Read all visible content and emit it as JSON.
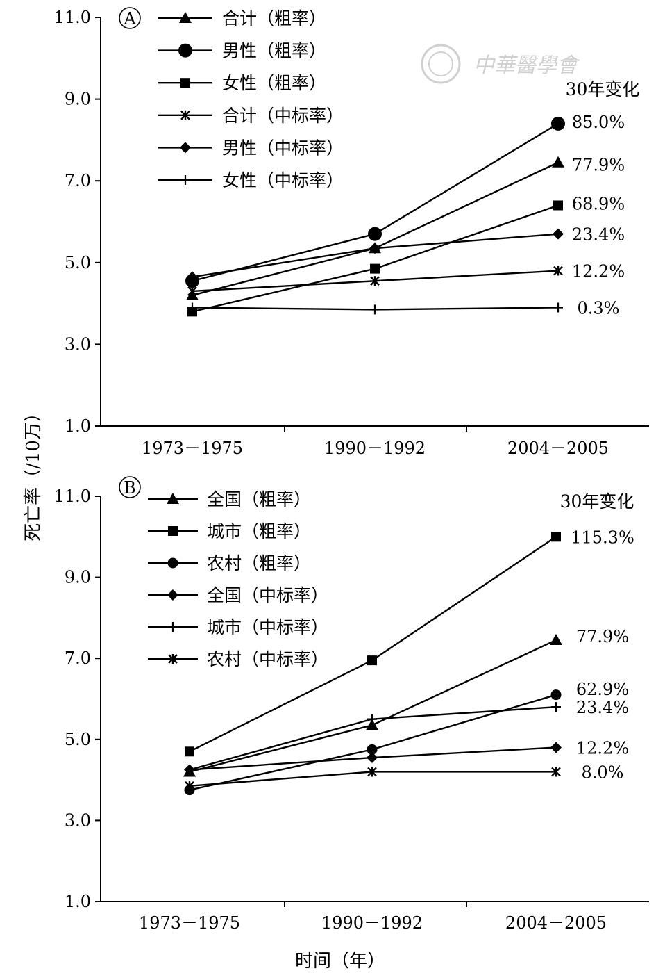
{
  "watermark": "中華醫學會",
  "y_axis_label": "死亡率（/10万）",
  "x_axis_label": "时间（年）",
  "chart_data": [
    {
      "panel": "A",
      "type": "line",
      "categories": [
        "1973－1975",
        "1990－1992",
        "2004－2005"
      ],
      "ylim": [
        1.0,
        11.0
      ],
      "yticks": [
        "1.0",
        "3.0",
        "5.0",
        "7.0",
        "9.0",
        "11.0"
      ],
      "change_title": "30年变化",
      "legend_position": "top-left",
      "series": [
        {
          "name": "合计（粗率）",
          "marker": "triangle",
          "values": [
            4.2,
            5.35,
            7.45
          ],
          "change": "77.9%"
        },
        {
          "name": "男性（粗率）",
          "marker": "circle-large",
          "values": [
            4.55,
            5.7,
            8.4
          ],
          "change": "85.0%"
        },
        {
          "name": "女性（粗率）",
          "marker": "square",
          "values": [
            3.8,
            4.85,
            6.4
          ],
          "change": "68.9%"
        },
        {
          "name": "合计（中标率）",
          "marker": "star",
          "values": [
            4.3,
            4.55,
            4.8
          ],
          "change": "12.2%"
        },
        {
          "name": "男性（中标率）",
          "marker": "diamond",
          "values": [
            4.65,
            5.35,
            5.7
          ],
          "change": "23.4%"
        },
        {
          "name": "女性（中标率）",
          "marker": "plus",
          "values": [
            3.9,
            3.85,
            3.9
          ],
          "change": "0.3%"
        }
      ]
    },
    {
      "panel": "B",
      "type": "line",
      "categories": [
        "1973－1975",
        "1990－1992",
        "2004－2005"
      ],
      "ylim": [
        1.0,
        11.0
      ],
      "yticks": [
        "1.0",
        "3.0",
        "5.0",
        "7.0",
        "9.0",
        "11.0"
      ],
      "change_title": "30年变化",
      "legend_position": "top-left",
      "series": [
        {
          "name": "全国（粗率）",
          "marker": "triangle",
          "values": [
            4.2,
            5.35,
            7.45
          ],
          "change": "77.9%"
        },
        {
          "name": "城市（粗率）",
          "marker": "square",
          "values": [
            4.7,
            6.95,
            10.0
          ],
          "change": "115.3%"
        },
        {
          "name": "农村（粗率）",
          "marker": "circle",
          "values": [
            3.75,
            4.75,
            6.1
          ],
          "change": "62.9%"
        },
        {
          "name": "全国（中标率）",
          "marker": "diamond",
          "values": [
            4.25,
            4.55,
            4.8
          ],
          "change": "12.2%"
        },
        {
          "name": "城市（中标率）",
          "marker": "plus",
          "values": [
            4.25,
            5.5,
            5.8
          ],
          "change": "23.4%"
        },
        {
          "name": "农村（中标率）",
          "marker": "star",
          "values": [
            3.85,
            4.2,
            4.2
          ],
          "change": "8.0%"
        }
      ]
    }
  ]
}
